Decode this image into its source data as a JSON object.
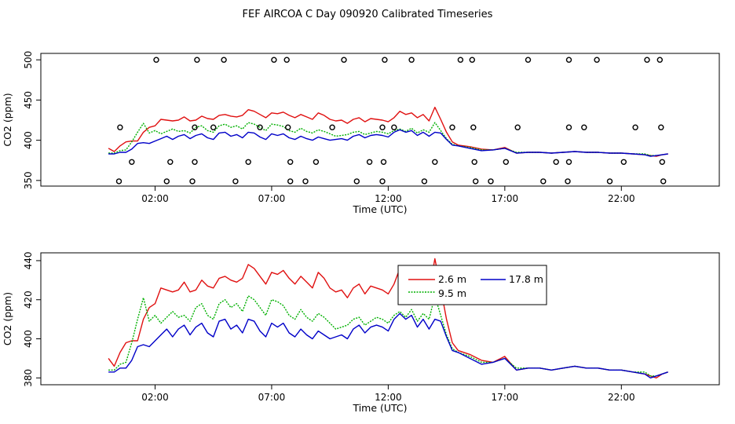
{
  "chart_data": [
    {
      "type": "scatter",
      "title": "FEF AIRCOA C  Day 090920  Calibrated Timeseries",
      "xlabel": "Time (UTC)",
      "ylabel": "CO2 (ppm)",
      "xlim": [
        -2.9,
        26.2
      ],
      "ylim": [
        343,
        508
      ],
      "x_ticks": [
        {
          "v": 2,
          "label": "02:00"
        },
        {
          "v": 7,
          "label": "07:00"
        },
        {
          "v": 12,
          "label": "12:00"
        },
        {
          "v": 17,
          "label": "17:00"
        },
        {
          "v": 22,
          "label": "22:00"
        }
      ],
      "y_ticks": [
        {
          "v": 350,
          "label": "350"
        },
        {
          "v": 400,
          "label": "400"
        },
        {
          "v": 450,
          "label": "450"
        },
        {
          "v": 500,
          "label": "500"
        }
      ],
      "calibration_points": {
        "x": [
          2.05,
          3.8,
          4.95,
          7.1,
          7.65,
          10.1,
          11.85,
          13.0,
          15.1,
          15.6,
          18.0,
          19.75,
          20.95,
          23.1,
          23.65,
          0.5,
          3.7,
          4.5,
          6.5,
          7.7,
          9.6,
          11.75,
          12.25,
          14.75,
          15.65,
          17.55,
          19.75,
          20.4,
          22.6,
          23.7,
          1.0,
          2.65,
          3.7,
          6.0,
          7.8,
          8.9,
          11.2,
          11.8,
          14.0,
          15.7,
          17.05,
          19.2,
          19.75,
          22.1,
          23.75,
          0.45,
          2.5,
          3.6,
          5.45,
          7.8,
          8.45,
          10.65,
          11.75,
          13.55,
          15.75,
          16.4,
          18.65,
          19.7,
          21.5,
          23.8
        ],
        "y": [
          500,
          500,
          500,
          500,
          500,
          500,
          500,
          500,
          500,
          500,
          500,
          500,
          500,
          500,
          500,
          416,
          416,
          416,
          416,
          416,
          416,
          416,
          416,
          416,
          416,
          416,
          416,
          416,
          416,
          416,
          373,
          373,
          373,
          373,
          373,
          373,
          373,
          373,
          373,
          373,
          373,
          373,
          373,
          373,
          373,
          349,
          349,
          349,
          349,
          349,
          349,
          349,
          349,
          349,
          349,
          349,
          349,
          349,
          349,
          349
        ]
      },
      "series_ref": "lines"
    },
    {
      "type": "line",
      "xlabel": "Time (UTC)",
      "ylabel": "CO2 (ppm)",
      "xlim": [
        -2.9,
        26.2
      ],
      "ylim": [
        376.5,
        444
      ],
      "x_ticks": [
        {
          "v": 2,
          "label": "02:00"
        },
        {
          "v": 7,
          "label": "07:00"
        },
        {
          "v": 12,
          "label": "12:00"
        },
        {
          "v": 17,
          "label": "17:00"
        },
        {
          "v": 22,
          "label": "22:00"
        }
      ],
      "y_ticks": [
        {
          "v": 380,
          "label": "380"
        },
        {
          "v": 400,
          "label": "400"
        },
        {
          "v": 420,
          "label": "420"
        },
        {
          "v": 440,
          "label": "440"
        }
      ],
      "legend_position": "top-right",
      "series": [
        {
          "name": "2.6 m",
          "color": "#e01010",
          "x": [
            0,
            0.25,
            0.5,
            0.75,
            1,
            1.25,
            1.5,
            1.75,
            2,
            2.25,
            2.5,
            2.75,
            3,
            3.25,
            3.5,
            3.75,
            4,
            4.25,
            4.5,
            4.75,
            5,
            5.25,
            5.5,
            5.75,
            6,
            6.25,
            6.5,
            6.75,
            7,
            7.25,
            7.5,
            7.75,
            8,
            8.25,
            8.5,
            8.75,
            9,
            9.25,
            9.5,
            9.75,
            10,
            10.25,
            10.5,
            10.75,
            11,
            11.25,
            11.5,
            11.75,
            12,
            12.25,
            12.5,
            12.75,
            13,
            13.25,
            13.5,
            13.75,
            14,
            14.25,
            14.5,
            14.75,
            15,
            15.5,
            16,
            16.5,
            17,
            17.5,
            18,
            18.5,
            19,
            19.5,
            20,
            20.5,
            21,
            21.5,
            22,
            22.5,
            23,
            23.25,
            23.5,
            23.75,
            24
          ],
          "values": [
            390,
            386,
            393,
            398,
            399,
            399,
            410,
            416,
            418,
            426,
            425,
            424,
            425,
            429,
            424,
            425,
            430,
            427,
            426,
            431,
            432,
            430,
            429,
            431,
            438,
            436,
            432,
            428,
            434,
            433,
            435,
            431,
            428,
            432,
            429,
            426,
            434,
            431,
            426,
            424,
            425,
            421,
            426,
            428,
            423,
            427,
            426,
            425,
            423,
            428,
            436,
            432,
            434,
            428,
            432,
            424,
            441,
            426,
            410,
            398,
            394,
            392,
            389,
            388,
            391,
            384,
            385,
            385,
            384,
            385,
            386,
            385,
            385,
            384,
            384,
            383,
            382,
            381,
            380,
            382,
            383
          ]
        },
        {
          "name": "9.5 m",
          "color": "#00b000",
          "x": [
            0,
            0.25,
            0.5,
            0.75,
            1,
            1.25,
            1.5,
            1.75,
            2,
            2.25,
            2.5,
            2.75,
            3,
            3.25,
            3.5,
            3.75,
            4,
            4.25,
            4.5,
            4.75,
            5,
            5.25,
            5.5,
            5.75,
            6,
            6.25,
            6.5,
            6.75,
            7,
            7.25,
            7.5,
            7.75,
            8,
            8.25,
            8.5,
            8.75,
            9,
            9.25,
            9.5,
            9.75,
            10,
            10.25,
            10.5,
            10.75,
            11,
            11.25,
            11.5,
            11.75,
            12,
            12.25,
            12.5,
            12.75,
            13,
            13.25,
            13.5,
            13.75,
            14,
            14.25,
            14.5,
            14.75,
            15,
            15.5,
            16,
            16.5,
            17,
            17.5,
            18,
            18.5,
            19,
            19.5,
            20,
            20.5,
            21,
            21.5,
            22,
            22.5,
            23,
            23.25,
            23.5,
            23.75,
            24
          ],
          "values": [
            384,
            384,
            387,
            388,
            398,
            410,
            421,
            409,
            412,
            408,
            411,
            414,
            411,
            412,
            409,
            416,
            418,
            412,
            410,
            418,
            420,
            416,
            418,
            414,
            422,
            420,
            416,
            412,
            420,
            419,
            417,
            412,
            410,
            415,
            411,
            409,
            413,
            411,
            408,
            405,
            406,
            407,
            410,
            411,
            407,
            409,
            411,
            410,
            408,
            412,
            414,
            411,
            415,
            409,
            413,
            410,
            422,
            412,
            402,
            395,
            393,
            391,
            388,
            388,
            390,
            385,
            385,
            385,
            384,
            385,
            386,
            385,
            385,
            384,
            384,
            383,
            383,
            381,
            381,
            382,
            383
          ]
        },
        {
          "name": "17.8 m",
          "color": "#0000c8",
          "x": [
            0,
            0.25,
            0.5,
            0.75,
            1,
            1.25,
            1.5,
            1.75,
            2,
            2.25,
            2.5,
            2.75,
            3,
            3.25,
            3.5,
            3.75,
            4,
            4.25,
            4.5,
            4.75,
            5,
            5.25,
            5.5,
            5.75,
            6,
            6.25,
            6.5,
            6.75,
            7,
            7.25,
            7.5,
            7.75,
            8,
            8.25,
            8.5,
            8.75,
            9,
            9.25,
            9.5,
            9.75,
            10,
            10.25,
            10.5,
            10.75,
            11,
            11.25,
            11.5,
            11.75,
            12,
            12.25,
            12.5,
            12.75,
            13,
            13.25,
            13.5,
            13.75,
            14,
            14.25,
            14.5,
            14.75,
            15,
            15.5,
            16,
            16.5,
            17,
            17.5,
            18,
            18.5,
            19,
            19.5,
            20,
            20.5,
            21,
            21.5,
            22,
            22.5,
            23,
            23.25,
            23.5,
            23.75,
            24
          ],
          "values": [
            383,
            383,
            385,
            385,
            389,
            396,
            397,
            396,
            399,
            402,
            405,
            401,
            405,
            407,
            402,
            406,
            408,
            403,
            401,
            409,
            410,
            405,
            407,
            403,
            410,
            409,
            404,
            401,
            408,
            406,
            408,
            403,
            401,
            405,
            402,
            400,
            404,
            402,
            400,
            401,
            402,
            400,
            405,
            407,
            403,
            406,
            407,
            406,
            404,
            410,
            413,
            410,
            412,
            406,
            410,
            405,
            410,
            409,
            401,
            394,
            393,
            390,
            387,
            388,
            390,
            384,
            385,
            385,
            384,
            385,
            386,
            385,
            385,
            384,
            384,
            383,
            382,
            380,
            381,
            382,
            383
          ]
        }
      ]
    }
  ]
}
